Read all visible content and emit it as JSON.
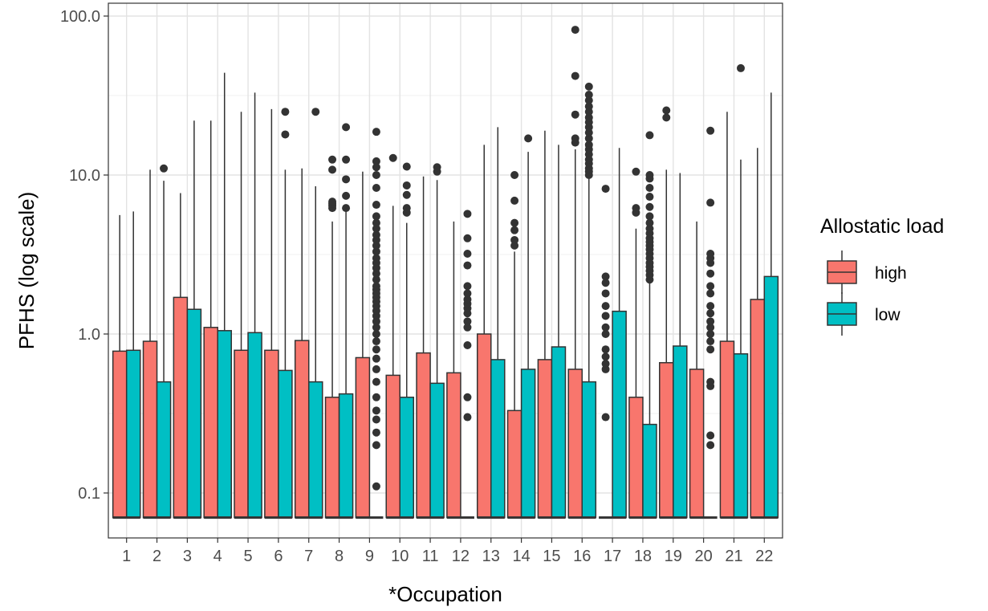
{
  "chart_data": {
    "type": "boxplot",
    "title": "",
    "xlabel": "*Occupation",
    "ylabel": "PFHS (log scale)",
    "yscale": "log10",
    "ylim": [
      0.05,
      100
    ],
    "yticks": [
      0.1,
      1.0,
      10.0,
      100.0
    ],
    "ytick_labels": [
      "0.1",
      "1.0",
      "10.0",
      "100.0"
    ],
    "categories": [
      "1",
      "2",
      "3",
      "4",
      "5",
      "6",
      "7",
      "8",
      "9",
      "10",
      "11",
      "12",
      "13",
      "14",
      "15",
      "16",
      "17",
      "18",
      "19",
      "20",
      "21",
      "22"
    ],
    "legend": {
      "title": "Allostatic load",
      "position": "right",
      "entries": [
        {
          "label": "high",
          "color": "#F8766D"
        },
        {
          "label": "low",
          "color": "#00BFC4"
        }
      ]
    },
    "grid": true,
    "series": [
      {
        "name": "high",
        "color": "#F8766D",
        "boxes": [
          {
            "lower": 0.07,
            "median": 0.07,
            "upper": 0.78,
            "whisker_high": 5.6,
            "outliers": []
          },
          {
            "lower": 0.07,
            "median": 0.07,
            "upper": 0.9,
            "whisker_high": 10.8,
            "outliers": []
          },
          {
            "lower": 0.07,
            "median": 0.07,
            "upper": 1.7,
            "whisker_high": 7.7,
            "outliers": []
          },
          {
            "lower": 0.07,
            "median": 0.07,
            "upper": 1.1,
            "whisker_high": 22.0,
            "outliers": []
          },
          {
            "lower": 0.07,
            "median": 0.07,
            "upper": 0.79,
            "whisker_high": 25.0,
            "outliers": []
          },
          {
            "lower": 0.07,
            "median": 0.07,
            "upper": 0.79,
            "whisker_high": 26.0,
            "outliers": []
          },
          {
            "lower": 0.07,
            "median": 0.07,
            "upper": 0.91,
            "whisker_high": 11.0,
            "outliers": []
          },
          {
            "lower": 0.07,
            "median": 0.07,
            "upper": 0.4,
            "whisker_high": 5.1,
            "outliers": [
              6.2,
              6.4,
              6.6,
              6.8,
              10.8,
              12.5
            ]
          },
          {
            "lower": 0.07,
            "median": 0.07,
            "upper": 0.71,
            "whisker_high": 10.5,
            "outliers": []
          },
          {
            "lower": 0.07,
            "median": 0.07,
            "upper": 0.55,
            "whisker_high": 6.4,
            "outliers": [
              12.8
            ]
          },
          {
            "lower": 0.07,
            "median": 0.07,
            "upper": 0.76,
            "whisker_high": 9.8,
            "outliers": []
          },
          {
            "lower": 0.07,
            "median": 0.07,
            "upper": 0.57,
            "whisker_high": 5.1,
            "outliers": []
          },
          {
            "lower": 0.07,
            "median": 0.07,
            "upper": 1.0,
            "whisker_high": 15.5,
            "outliers": []
          },
          {
            "lower": 0.07,
            "median": 0.07,
            "upper": 0.33,
            "whisker_high": 3.3,
            "outliers": [
              3.6,
              3.9,
              4.5,
              5.0,
              6.9,
              10.0
            ]
          },
          {
            "lower": 0.07,
            "median": 0.07,
            "upper": 0.69,
            "whisker_high": 19.0,
            "outliers": []
          },
          {
            "lower": 0.07,
            "median": 0.07,
            "upper": 0.6,
            "whisker_high": 14.5,
            "outliers": [
              16.0,
              17.0,
              24.0,
              42.0,
              82.0
            ]
          },
          {
            "lower": 0.07,
            "median": 0.07,
            "upper": 0.07,
            "whisker_high": 0.07,
            "outliers": [
              0.3,
              0.6,
              0.65,
              0.72,
              0.8,
              1.0,
              1.1,
              1.3,
              1.5,
              1.8,
              2.1,
              2.3,
              8.2
            ]
          },
          {
            "lower": 0.07,
            "median": 0.07,
            "upper": 0.4,
            "whisker_high": 4.6,
            "outliers": [
              5.8,
              6.2,
              10.5
            ]
          },
          {
            "lower": 0.07,
            "median": 0.07,
            "upper": 0.66,
            "whisker_high": 10.8,
            "outliers": [
              23.0,
              25.5
            ]
          },
          {
            "lower": 0.07,
            "median": 0.07,
            "upper": 0.6,
            "whisker_high": 5.1,
            "outliers": []
          },
          {
            "lower": 0.07,
            "median": 0.07,
            "upper": 0.9,
            "whisker_high": 25.0,
            "outliers": []
          },
          {
            "lower": 0.07,
            "median": 0.07,
            "upper": 1.65,
            "whisker_high": 14.8,
            "outliers": []
          }
        ]
      },
      {
        "name": "low",
        "color": "#00BFC4",
        "boxes": [
          {
            "lower": 0.07,
            "median": 0.07,
            "upper": 0.79,
            "whisker_high": 5.9,
            "outliers": []
          },
          {
            "lower": 0.07,
            "median": 0.07,
            "upper": 0.5,
            "whisker_high": 9.2,
            "outliers": [
              11.0
            ]
          },
          {
            "lower": 0.07,
            "median": 0.07,
            "upper": 1.43,
            "whisker_high": 22.0,
            "outliers": []
          },
          {
            "lower": 0.07,
            "median": 0.07,
            "upper": 1.05,
            "whisker_high": 44.0,
            "outliers": []
          },
          {
            "lower": 0.07,
            "median": 0.07,
            "upper": 1.02,
            "whisker_high": 33.0,
            "outliers": []
          },
          {
            "lower": 0.07,
            "median": 0.07,
            "upper": 0.59,
            "whisker_high": 10.8,
            "outliers": [
              18.0,
              25.0
            ]
          },
          {
            "lower": 0.07,
            "median": 0.07,
            "upper": 0.5,
            "whisker_high": 8.5,
            "outliers": [
              25.0
            ]
          },
          {
            "lower": 0.07,
            "median": 0.07,
            "upper": 0.42,
            "whisker_high": 6.0,
            "outliers": [
              6.2,
              7.4,
              9.4,
              12.5,
              20.0
            ]
          },
          {
            "lower": 0.07,
            "median": 0.07,
            "upper": 0.07,
            "whisker_high": 0.07,
            "outliers": [
              0.11,
              0.2,
              0.24,
              0.29,
              0.33,
              0.4,
              0.5,
              0.6,
              0.7,
              0.8,
              0.9,
              1.0,
              1.1,
              1.2,
              1.3,
              1.4,
              1.5,
              1.6,
              1.7,
              1.8,
              1.9,
              2.0,
              2.2,
              2.4,
              2.6,
              2.8,
              3.0,
              3.3,
              3.6,
              3.9,
              4.2,
              4.6,
              5.0,
              5.5,
              6.5,
              8.3,
              10.0,
              11.2,
              12.2,
              18.7
            ]
          },
          {
            "lower": 0.07,
            "median": 0.07,
            "upper": 0.4,
            "whisker_high": 5.0,
            "outliers": [
              5.8,
              6.2,
              7.5,
              8.6,
              11.3
            ]
          },
          {
            "lower": 0.07,
            "median": 0.07,
            "upper": 0.49,
            "whisker_high": 9.3,
            "outliers": [
              10.5,
              11.2
            ]
          },
          {
            "lower": 0.07,
            "median": 0.07,
            "upper": 0.07,
            "whisker_high": 0.07,
            "outliers": [
              0.3,
              0.4,
              0.85,
              1.1,
              1.2,
              1.35,
              1.45,
              1.55,
              1.65,
              1.8,
              2.0,
              2.7,
              3.2,
              4.0,
              5.7
            ]
          },
          {
            "lower": 0.07,
            "median": 0.07,
            "upper": 0.69,
            "whisker_high": 20.0,
            "outliers": []
          },
          {
            "lower": 0.07,
            "median": 0.07,
            "upper": 0.6,
            "whisker_high": 14.0,
            "outliers": [
              17.0
            ]
          },
          {
            "lower": 0.07,
            "median": 0.07,
            "upper": 0.83,
            "whisker_high": 15.5,
            "outliers": []
          },
          {
            "lower": 0.07,
            "median": 0.07,
            "upper": 0.5,
            "whisker_high": 9.8,
            "outliers": [
              10.0,
              10.5,
              11.0,
              11.8,
              12.5,
              13.5,
              14.5,
              15.5,
              17.0,
              18.5,
              20.0,
              21.5,
              23.0,
              25.0,
              27.0,
              29.5,
              32.0,
              36.0
            ]
          },
          {
            "lower": 0.07,
            "median": 0.07,
            "upper": 1.39,
            "whisker_high": 14.8,
            "outliers": []
          },
          {
            "lower": 0.07,
            "median": 0.07,
            "upper": 0.27,
            "whisker_high": 2.1,
            "outliers": [
              2.2,
              2.35,
              2.5,
              2.65,
              2.8,
              3.0,
              3.2,
              3.4,
              3.6,
              3.8,
              4.0,
              4.3,
              4.6,
              5.0,
              5.5,
              6.3,
              7.3,
              8.3,
              9.5,
              10.0,
              17.8
            ]
          },
          {
            "lower": 0.07,
            "median": 0.07,
            "upper": 0.84,
            "whisker_high": 10.3,
            "outliers": []
          },
          {
            "lower": 0.07,
            "median": 0.07,
            "upper": 0.07,
            "whisker_high": 0.07,
            "outliers": [
              0.2,
              0.23,
              0.47,
              0.5,
              0.8,
              0.9,
              1.0,
              1.1,
              1.2,
              1.35,
              1.5,
              1.8,
              2.0,
              2.4,
              2.8,
              3.0,
              3.2,
              6.7,
              19.0
            ]
          },
          {
            "lower": 0.07,
            "median": 0.07,
            "upper": 0.75,
            "whisker_high": 12.5,
            "outliers": [
              47.0
            ]
          },
          {
            "lower": 0.07,
            "median": 0.07,
            "upper": 2.3,
            "whisker_high": 33.0,
            "outliers": []
          }
        ]
      }
    ]
  }
}
